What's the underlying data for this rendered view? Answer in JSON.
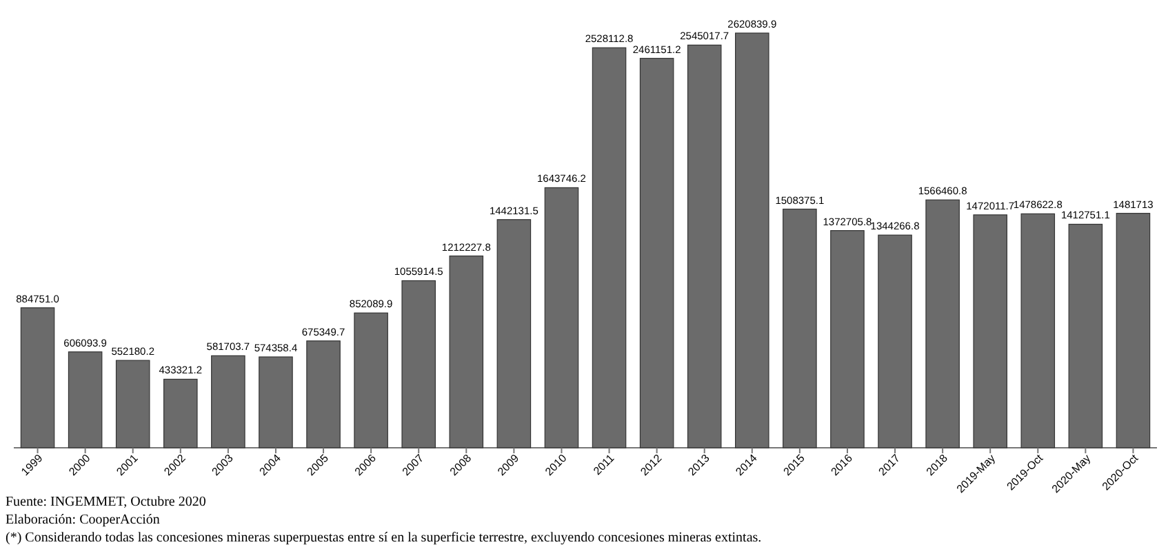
{
  "chart_data": {
    "type": "bar",
    "categories": [
      "1999",
      "2000",
      "2001",
      "2002",
      "2003",
      "2004",
      "2005",
      "2006",
      "2007",
      "2008",
      "2009",
      "2010",
      "2011",
      "2012",
      "2013",
      "2014",
      "2015",
      "2016",
      "2017",
      "2018",
      "2019-May",
      "2019-Oct",
      "2020-May",
      "2020-Oct"
    ],
    "values": [
      884751.0,
      606093.9,
      552180.2,
      433321.2,
      581703.7,
      574358.4,
      675349.7,
      852089.9,
      1055914.5,
      1212227.8,
      1442131.5,
      1643746.2,
      2528112.8,
      2461151.2,
      2545017.7,
      2620839.9,
      1508375.1,
      1372705.8,
      1344266.8,
      1566460.8,
      1472011.7,
      1478622.8,
      1412751.1,
      1481713
    ],
    "value_labels": [
      "884751.0",
      "606093.9",
      "552180.2",
      "433321.2",
      "581703.7",
      "574358.4",
      "675349.7",
      "852089.9",
      "1055914.5",
      "1212227.8",
      "1442131.5",
      "1643746.2",
      "2528112.8",
      "2461151.2",
      "2545017.7",
      "2620839.9",
      "1508375.1",
      "1372705.8",
      "1344266.8",
      "1566460.8",
      "1472011.7",
      "1478622.8",
      "1412751.1",
      "1481713"
    ],
    "color": "#6b6b6b",
    "annotations": [
      "Fuente: INGEMMET, Octubre 2020",
      "Elaboración: CooperAcción",
      "(*) Considerando todas las concesiones mineras superpuestas entre sí en la superficie terrestre, excluyendo concesiones mineras extintas."
    ]
  }
}
